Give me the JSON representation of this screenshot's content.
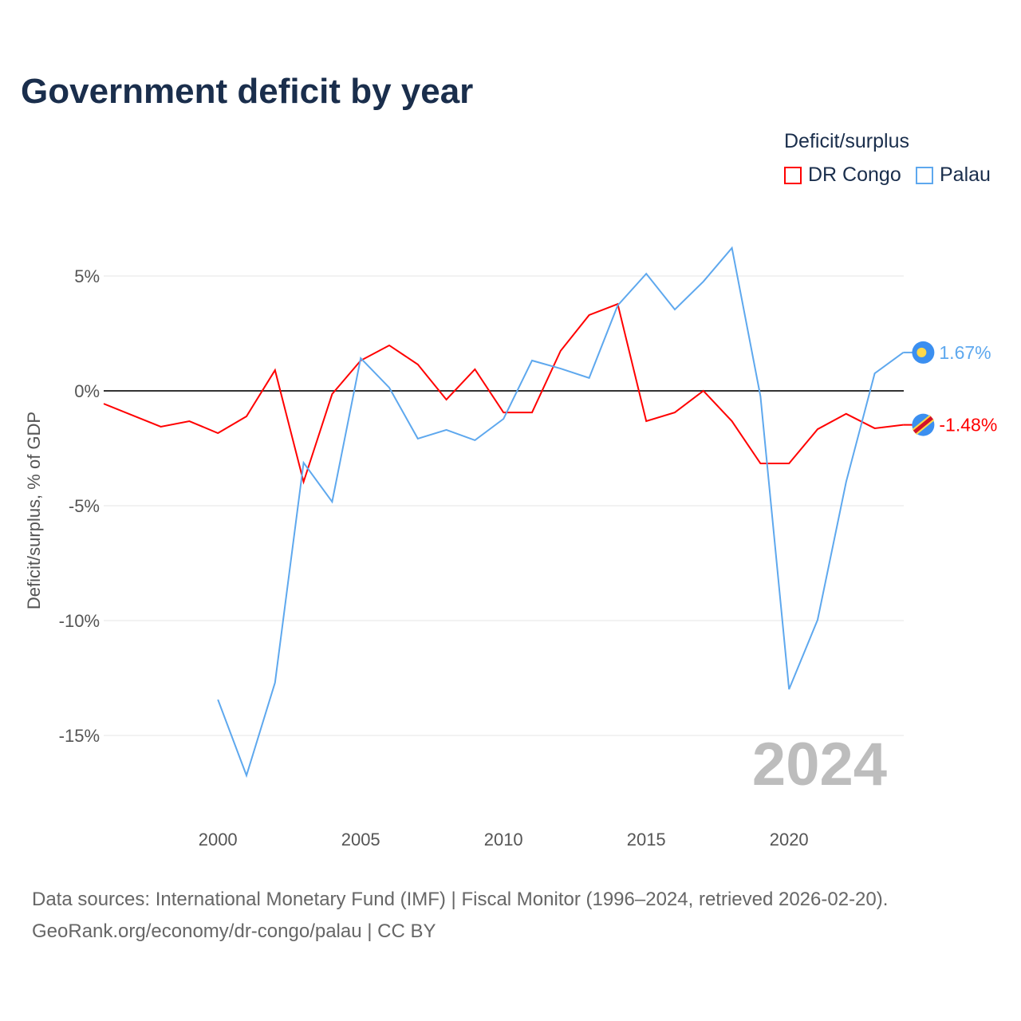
{
  "title": "Government deficit by year",
  "legend": {
    "title": "Deficit/surplus",
    "items": [
      {
        "name": "DR Congo",
        "color": "#ff0000"
      },
      {
        "name": "Palau",
        "color": "#5ea8ee"
      }
    ]
  },
  "source_line1": "Data sources: International Monetary Fund (IMF) | Fiscal Monitor (1996–2024, retrieved 2026-02-20).",
  "source_line2": "GeoRank.org/economy/dr-congo/palau | CC BY",
  "chart_data": {
    "type": "line",
    "title": "Government deficit by year",
    "xlabel": "",
    "ylabel": "Deficit/surplus, % of GDP",
    "xlim": [
      1996,
      2024
    ],
    "ylim": [
      -18,
      8
    ],
    "xticks": [
      2000,
      2005,
      2010,
      2015,
      2020
    ],
    "xtick_labels": [
      "2000",
      "2005",
      "2010",
      "2015",
      "2020"
    ],
    "yticks": [
      5,
      0,
      -5,
      -10,
      -15
    ],
    "ytick_labels": [
      "5%",
      "0%",
      "-5%",
      "-10%",
      "-15%"
    ],
    "grid": true,
    "year_watermark": "2024",
    "legend_position": "top-right",
    "series": [
      {
        "name": "DR Congo",
        "color": "#ff0000",
        "end_label": "-1.48%",
        "x": [
          1996,
          1997,
          1998,
          1999,
          2000,
          2001,
          2002,
          2003,
          2004,
          2005,
          2006,
          2007,
          2008,
          2009,
          2010,
          2011,
          2012,
          2013,
          2014,
          2015,
          2016,
          2017,
          2018,
          2019,
          2020,
          2021,
          2022,
          2023,
          2024
        ],
        "values": [
          -0.56,
          -1.06,
          -1.56,
          -1.32,
          -1.84,
          -1.11,
          0.9,
          -3.96,
          -0.14,
          1.32,
          1.98,
          1.15,
          -0.38,
          0.94,
          -0.94,
          -0.94,
          1.74,
          3.3,
          3.78,
          -1.32,
          -0.94,
          0,
          -1.32,
          -3.16,
          -3.16,
          -1.67,
          -1.0,
          -1.63,
          -1.48
        ]
      },
      {
        "name": "Palau",
        "color": "#5ea8ee",
        "end_label": "1.67%",
        "x": [
          2000,
          2001,
          2002,
          2003,
          2004,
          2005,
          2006,
          2007,
          2008,
          2009,
          2010,
          2011,
          2012,
          2013,
          2014,
          2015,
          2016,
          2017,
          2018,
          2019,
          2020,
          2021,
          2022,
          2023,
          2024
        ],
        "values": [
          -13.44,
          -16.74,
          -12.7,
          -3.13,
          -4.83,
          1.42,
          0.14,
          -2.08,
          -1.7,
          -2.15,
          -1.22,
          1.32,
          0.97,
          0.56,
          3.72,
          5.1,
          3.54,
          4.76,
          6.22,
          -0.24,
          -12.99,
          -9.97,
          -3.96,
          0.76,
          1.67
        ]
      }
    ]
  }
}
